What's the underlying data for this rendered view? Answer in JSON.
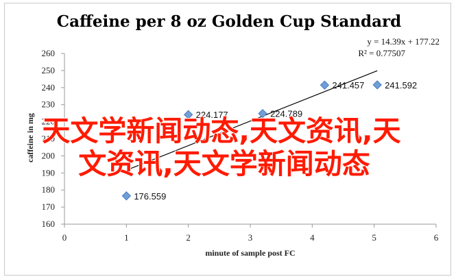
{
  "chart_data": {
    "type": "scatter",
    "title": "Caffeine per 8 oz Golden Cup Standard",
    "xlabel": "minute of sample post FC",
    "ylabel": "caffeine in mg",
    "xlim": [
      0,
      6
    ],
    "ylim": [
      160,
      260
    ],
    "x_ticks": [
      "0",
      "1",
      "2",
      "3",
      "4",
      "5",
      "6"
    ],
    "y_ticks": [
      "160",
      "170",
      "180",
      "190",
      "200",
      "210",
      "220",
      "230",
      "240",
      "250",
      "260"
    ],
    "points": [
      {
        "x": 1,
        "y": 176.559,
        "label": "176.559"
      },
      {
        "x": 2,
        "y": 224.177,
        "label": "224.177"
      },
      {
        "x": 3.2,
        "y": 224.789,
        "label": "224.789"
      },
      {
        "x": 4.2,
        "y": 241.457,
        "label": "241.457"
      },
      {
        "x": 5.05,
        "y": 241.592,
        "label": "241.592"
      }
    ],
    "trendline": {
      "slope": 14.39,
      "intercept": 177.22,
      "x_range": [
        1,
        5.05
      ],
      "equation": "y = 14.39x + 177.22",
      "r_squared": "R² = 0.77507"
    },
    "grid": false,
    "marker_color": "#6f9fd6",
    "marker_edge": "#4a7bbf",
    "trend_color": "#000000"
  },
  "overlay": {
    "line1": "天文学新闻动态,天文资讯,天",
    "line2": "文资讯,天文学新闻动态",
    "color": "#ff1a00"
  }
}
